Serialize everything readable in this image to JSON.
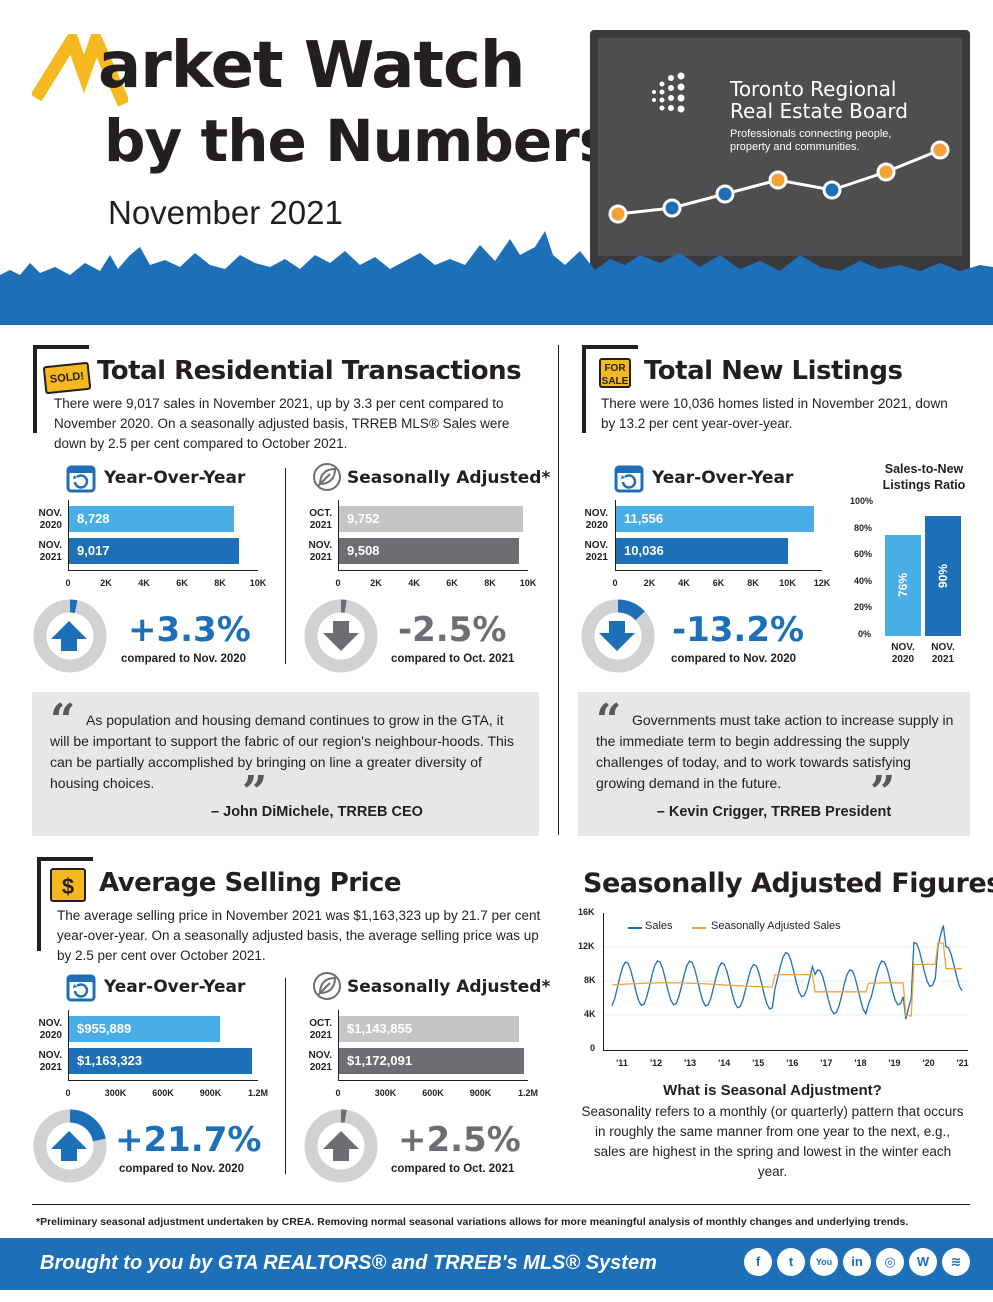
{
  "header": {
    "title_line1_m": "M",
    "title_line1_rest": "arket Watch",
    "title_line2": "by the Numbers",
    "period": "November 2021",
    "tv": {
      "org_line1": "Toronto Regional",
      "org_line2": "Real Estate Board",
      "tagline_line1": "Professionals connecting people,",
      "tagline_line2": "property and communities."
    }
  },
  "colors": {
    "brand_blue": "#1d6fb8",
    "light_blue": "#4aaee6",
    "dark_gray": "#6d6e71",
    "light_gray": "#c4c5c7",
    "accent_orange": "#f3a23a",
    "yellow": "#f6b81f"
  },
  "transactions": {
    "sign": "SOLD!",
    "title": "Total Residential Transactions",
    "text": "There were 9,017 sales in November 2021, up by 3.3 per cent compared to November 2020. On a seasonally adjusted basis, TRREB MLS® Sales were down by 2.5 per cent compared to October 2021.",
    "yoy": {
      "label": "Year-Over-Year",
      "bars": [
        {
          "period_top": "NOV.",
          "period_bottom": "2020",
          "value_label": "8,728",
          "value": 8728
        },
        {
          "period_top": "NOV.",
          "period_bottom": "2021",
          "value_label": "9,017",
          "value": 9017
        }
      ],
      "ticks": [
        "0",
        "2K",
        "4K",
        "6K",
        "8K",
        "10K"
      ],
      "max": 10000,
      "change": "+3.3%",
      "change_fraction": 0.033,
      "compare": "compared to Nov. 2020"
    },
    "sa": {
      "label": "Seasonally Adjusted*",
      "bars": [
        {
          "period_top": "OCT.",
          "period_bottom": "2021",
          "value_label": "9,752",
          "value": 9752
        },
        {
          "period_top": "NOV.",
          "period_bottom": "2021",
          "value_label": "9,508",
          "value": 9508
        }
      ],
      "ticks": [
        "0",
        "2K",
        "4K",
        "6K",
        "8K",
        "10K"
      ],
      "max": 10000,
      "change": "-2.5%",
      "change_fraction": 0.025,
      "compare": "compared to Oct. 2021"
    },
    "quote": {
      "text": "As population and housing demand continues to grow in the GTA, it will be important to support the fabric of our region's neighbour-hoods. This can be partially accomplished by bringing on line a greater diversity of housing choices.",
      "author": "– John DiMichele, TRREB CEO"
    }
  },
  "listings": {
    "sign_top": "FOR",
    "sign_bottom": "SALE",
    "title": "Total New Listings",
    "text": "There were 10,036 homes listed in November 2021, down by 13.2 per cent year-over-year.",
    "yoy": {
      "label": "Year-Over-Year",
      "bars": [
        {
          "period_top": "NOV.",
          "period_bottom": "2020",
          "value_label": "11,556",
          "value": 11556
        },
        {
          "period_top": "NOV.",
          "period_bottom": "2021",
          "value_label": "10,036",
          "value": 10036
        }
      ],
      "ticks": [
        "0",
        "2K",
        "4K",
        "6K",
        "8K",
        "10K",
        "12K"
      ],
      "max": 12000,
      "change": "-13.2%",
      "change_fraction": 0.132,
      "compare": "compared to Nov. 2020"
    },
    "ratio": {
      "title": "Sales-to-New Listings Ratio",
      "ticks": [
        "100%",
        "80%",
        "60%",
        "40%",
        "20%",
        "0%"
      ],
      "bars": [
        {
          "label": "76%",
          "value": 76,
          "period_top": "NOV.",
          "period_bottom": "2020"
        },
        {
          "label": "90%",
          "value": 90,
          "period_top": "NOV.",
          "period_bottom": "2021"
        }
      ]
    },
    "quote": {
      "text": "Governments must take action to increase supply in the immediate term to begin addressing the supply challenges of today, and to work towards satisfying growing demand in the future.",
      "author": "– Kevin Crigger, TRREB President"
    }
  },
  "price": {
    "title": "Average Selling Price",
    "text": "The average selling price in November 2021 was $1,163,323 up by 21.7 per cent year-over-year. On a seasonally adjusted basis, the average selling price was up by 2.5 per cent over October 2021.",
    "yoy": {
      "label": "Year-Over-Year",
      "bars": [
        {
          "period_top": "NOV.",
          "period_bottom": "2020",
          "value_label": "$955,889",
          "value": 955889
        },
        {
          "period_top": "NOV.",
          "period_bottom": "2021",
          "value_label": "$1,163,323",
          "value": 1163323
        }
      ],
      "ticks": [
        "0",
        "300K",
        "600K",
        "900K",
        "1.2M"
      ],
      "max": 1200000,
      "change": "+21.7%",
      "change_fraction": 0.217,
      "compare": "compared to Nov. 2020"
    },
    "sa": {
      "label": "Seasonally Adjusted*",
      "bars": [
        {
          "period_top": "OCT.",
          "period_bottom": "2021",
          "value_label": "$1,143,855",
          "value": 1143855
        },
        {
          "period_top": "NOV.",
          "period_bottom": "2021",
          "value_label": "$1,172,091",
          "value": 1172091
        }
      ],
      "ticks": [
        "0",
        "300K",
        "600K",
        "900K",
        "1.2M"
      ],
      "max": 1200000,
      "change": "+2.5%",
      "change_fraction": 0.025,
      "compare": "compared to Oct. 2021"
    }
  },
  "seasonal": {
    "title": "Seasonally Adjusted Figures",
    "chart": {
      "y_ticks": [
        "16K",
        "12K",
        "8K",
        "4K",
        "0"
      ],
      "x_ticks": [
        "'11",
        "'12",
        "'13",
        "'14",
        "'15",
        "'16",
        "'17",
        "'18",
        "'19",
        "'20",
        "'21"
      ],
      "legend_sales": "Sales",
      "legend_sa": "Seasonally Adjusted Sales"
    },
    "q_title": "What is Seasonal Adjustment?",
    "q_text": "Seasonality refers to a monthly (or quarterly) pattern that occurs in roughly the same manner from one year to the next, e.g., sales are highest in the spring and lowest in the winter each year."
  },
  "footnote": "*Preliminary seasonal adjustment undertaken by CREA. Removing normal seasonal variations allows for more meaningful analysis of monthly changes and underlying trends.",
  "footer": {
    "text": "Brought to you by GTA REALTORS® and TRREB's MLS® System",
    "social": [
      "f",
      "t",
      "You",
      "in",
      "◎",
      "W",
      "≋"
    ]
  }
}
